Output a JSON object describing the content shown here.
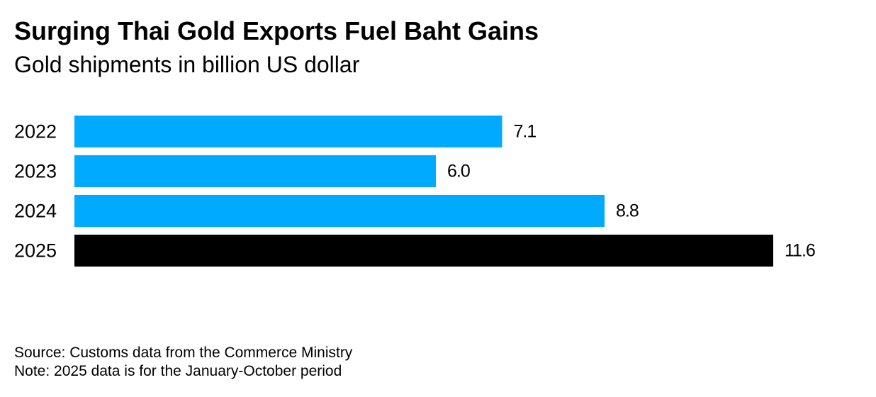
{
  "chart_data": {
    "type": "bar",
    "orientation": "horizontal",
    "title": "Surging Thai Gold Exports Fuel Baht Gains",
    "subtitle": "Gold shipments in billion US dollar",
    "categories": [
      "2022",
      "2023",
      "2024",
      "2025"
    ],
    "values": [
      7.1,
      6.0,
      8.8,
      11.6
    ],
    "value_labels": [
      "7.1",
      "6.0",
      "8.8",
      "11.6"
    ],
    "colors": [
      "#00aaff",
      "#00aaff",
      "#00aaff",
      "#000000"
    ],
    "xlim": [
      0,
      11.6
    ],
    "grid": false,
    "legend": "none"
  },
  "footer": {
    "source": "Source: Customs data from the Commerce Ministry",
    "note": "Note: 2025 data is for the January-October period"
  }
}
